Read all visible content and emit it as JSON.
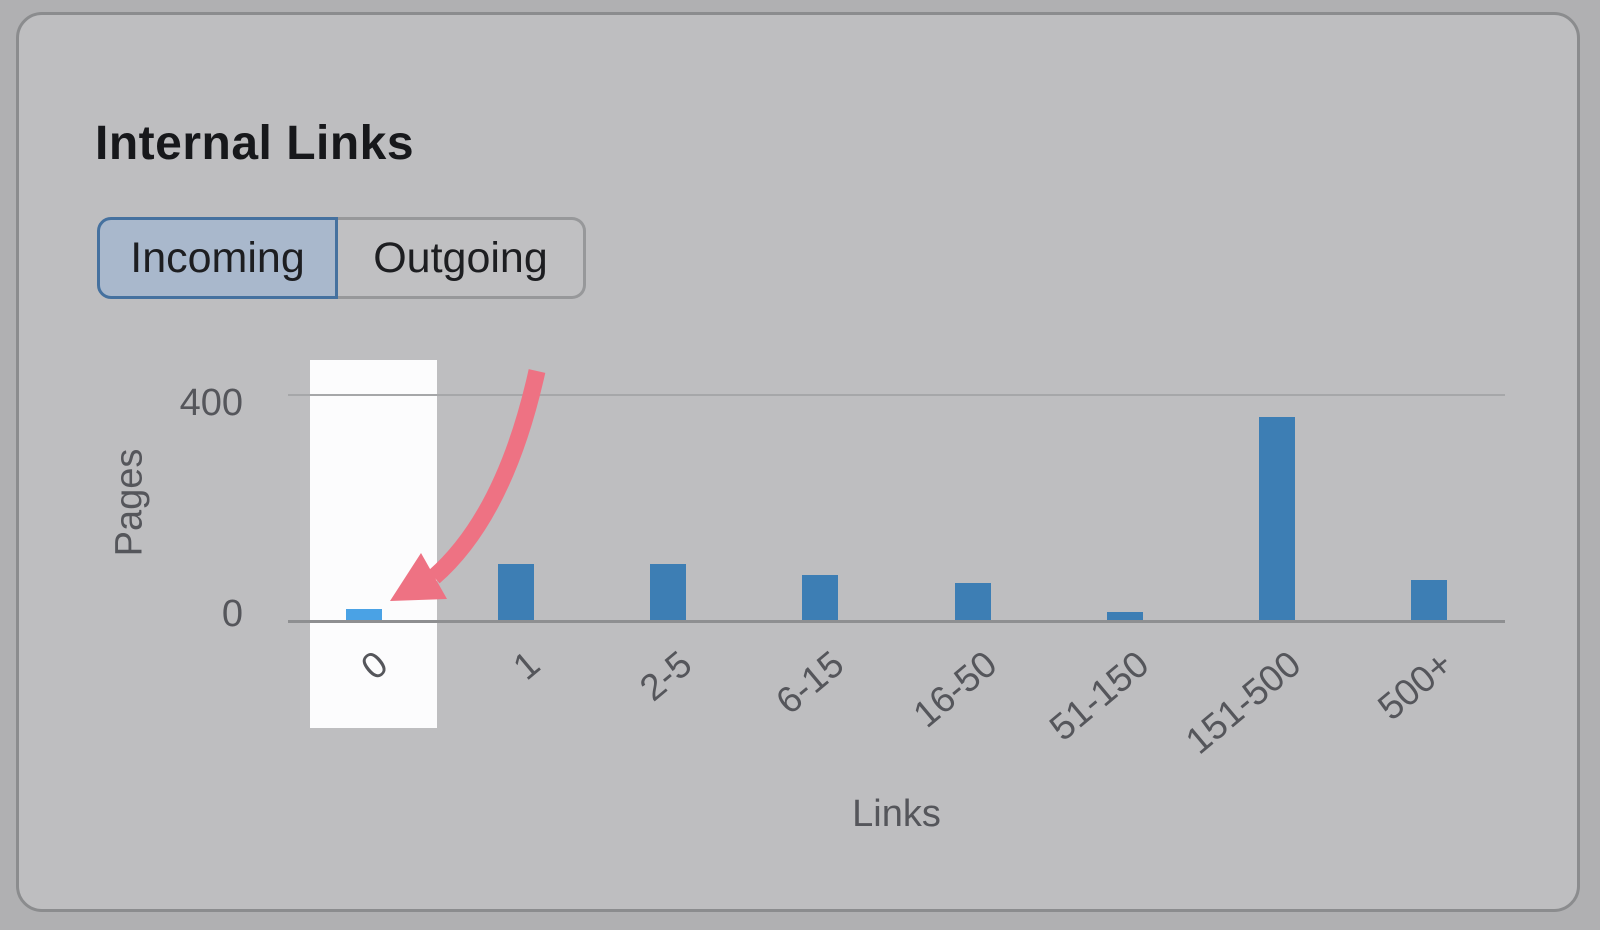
{
  "card": {
    "title": "Internal Links"
  },
  "toggle": {
    "incoming_label": "Incoming",
    "outgoing_label": "Outgoing",
    "selected": "Incoming"
  },
  "chart_data": {
    "type": "bar",
    "categories": [
      "0",
      "1",
      "2-5",
      "6-15",
      "16-50",
      "51-150",
      "151-500",
      "500+"
    ],
    "values": [
      20,
      100,
      100,
      80,
      65,
      15,
      360,
      70
    ],
    "title": "Internal Links",
    "xlabel": "Links",
    "ylabel": "Pages",
    "ytick_labels": [
      "400",
      "0"
    ],
    "yticks": [
      400,
      0
    ],
    "ylim": [
      0,
      460
    ],
    "grid": "single horizontal gridline at 400",
    "legend": false,
    "highlighted_category": "0",
    "annotation": "pink arrow pointing to the bar for pages with 0 incoming internal links; that column is highlighted with a white strip"
  },
  "colors": {
    "bar": "#3d7eb4",
    "highlighted_bar": "#4aa2e5",
    "arrow": "#ee7283",
    "selected_tab_bg": "#a9b8cc",
    "selected_tab_border": "#45719f"
  }
}
